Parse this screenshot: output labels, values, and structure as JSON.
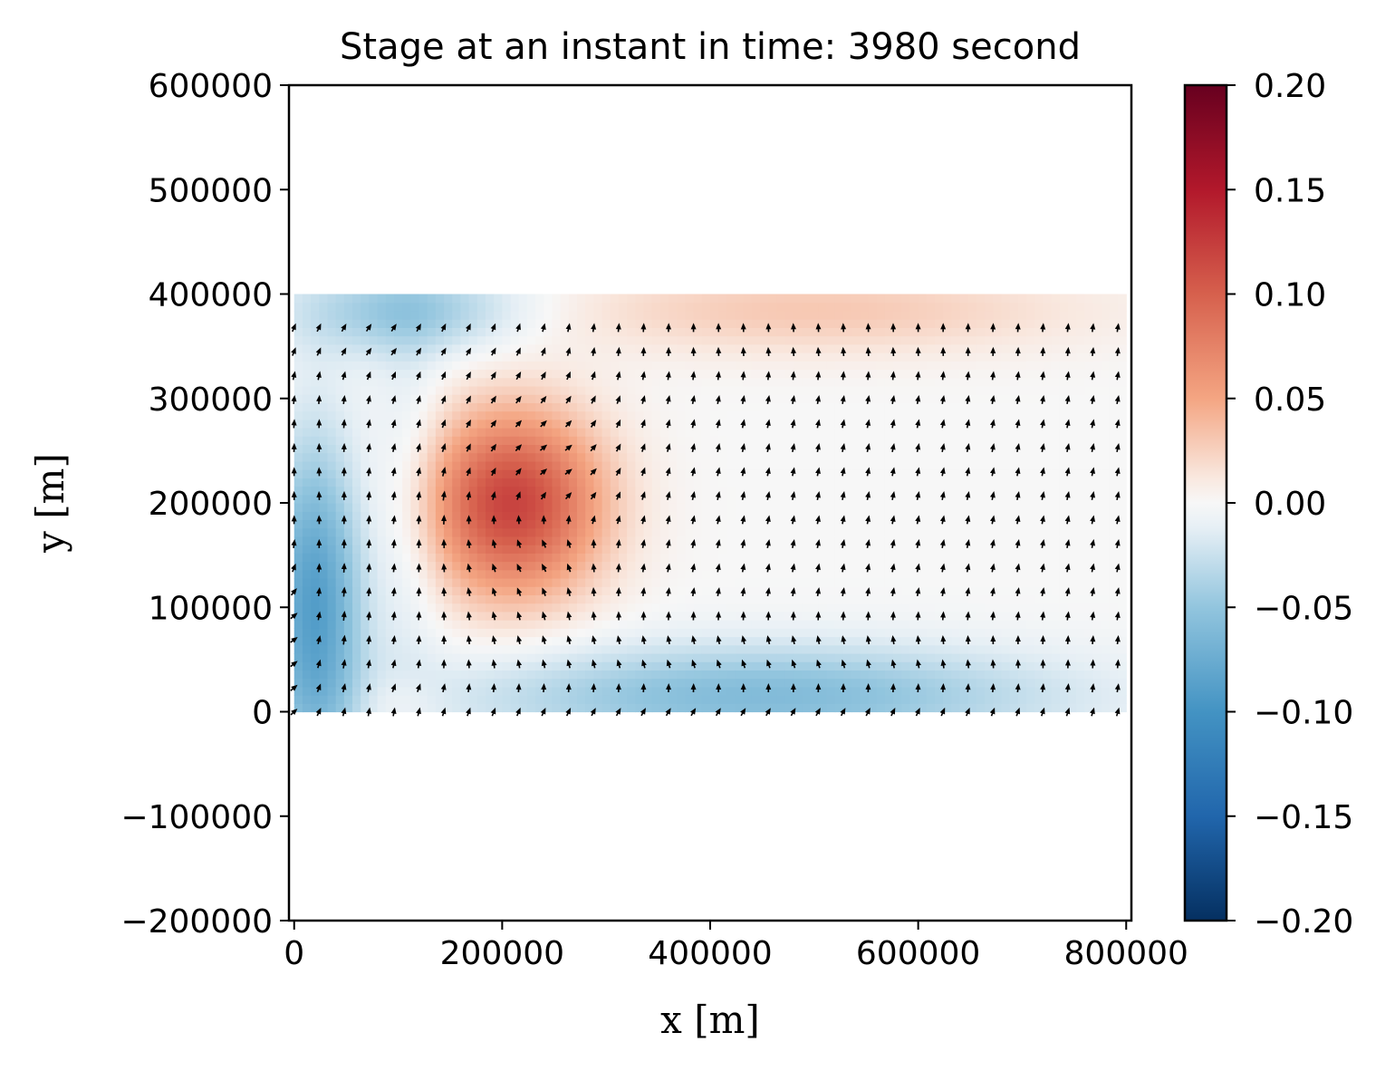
{
  "chart_data": {
    "type": "heatmap",
    "title": "Stage at an instant in time: 3980 second",
    "xlabel": "x [m]",
    "ylabel": "y [m]",
    "xlim": [
      -5000,
      805000
    ],
    "ylim": [
      -200000,
      600000
    ],
    "x_ticks": [
      0,
      200000,
      400000,
      600000,
      800000
    ],
    "x_tick_labels": [
      "0",
      "200000",
      "400000",
      "600000",
      "800000"
    ],
    "y_ticks": [
      -200000,
      -100000,
      0,
      100000,
      200000,
      300000,
      400000,
      500000,
      600000
    ],
    "y_tick_labels": [
      "−200000",
      "−100000",
      "0",
      "100000",
      "200000",
      "300000",
      "400000",
      "500000",
      "600000"
    ],
    "grid": false,
    "colormap": "RdBu_r",
    "colorbar": {
      "range": [
        -0.2,
        0.2
      ],
      "ticks": [
        -0.2,
        -0.15,
        -0.1,
        -0.05,
        0.0,
        0.05,
        0.1,
        0.15,
        0.2
      ],
      "tick_labels": [
        "−0.20",
        "−0.15",
        "−0.10",
        "−0.05",
        "0.00",
        "0.05",
        "0.10",
        "0.15",
        "0.20"
      ]
    },
    "field": {
      "quantity": "stage",
      "domain_x": [
        0,
        800000
      ],
      "domain_y": [
        0,
        400000
      ],
      "features": [
        {
          "kind": "eddy-high",
          "center_x": 210000,
          "center_y": 200000,
          "peak": 0.12
        },
        {
          "kind": "low-west-boundary",
          "center_x": 20000,
          "center_y": 100000,
          "peak": -0.09
        },
        {
          "kind": "low-north-west",
          "center_x": 110000,
          "center_y": 385000,
          "peak": -0.05
        },
        {
          "kind": "low-south-boundary",
          "center_x": 450000,
          "center_y": 15000,
          "peak": -0.06
        },
        {
          "kind": "high-north",
          "center_x": 500000,
          "center_y": 385000,
          "peak": 0.03
        }
      ]
    },
    "vectors": {
      "type": "quiver",
      "color": "#000000",
      "x_range": [
        0,
        800000
      ],
      "y_range": [
        0,
        390000
      ],
      "spacing_x": 24000,
      "spacing_y": 23000
    }
  }
}
